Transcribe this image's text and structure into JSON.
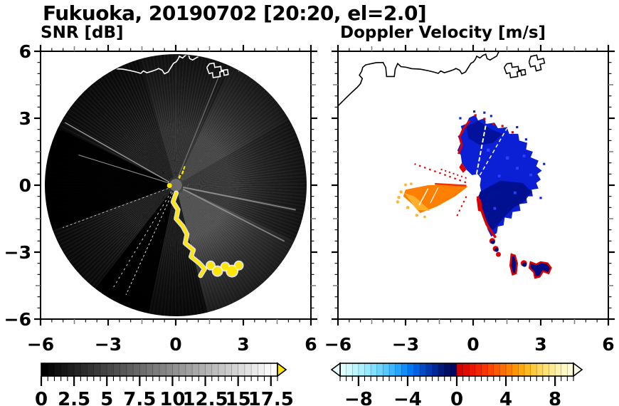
{
  "title": "Fukuoka, 20190702 [20:20, el=2.0]",
  "panels": {
    "snr": {
      "subtitle": "SNR [dB]"
    },
    "velocity": {
      "subtitle": "Doppler Velocity [m/s]"
    }
  },
  "colors": {
    "clutter-yellow": "#ffe600",
    "vel-blue": "#0b1fd4",
    "vel-navy": "#000d85",
    "vel-blue-light": "#2e49ff",
    "vel-red": "#dc0000",
    "vel-red-deep": "#f23000",
    "vel-orange": "#ff7f00",
    "vel-orange-light": "#ffb52e",
    "coast-snr": "#ffffff",
    "coast-vel": "#000000",
    "ray-gray": "#aaaaaa"
  },
  "chart_data": [
    {
      "type": "heatmap",
      "title": "SNR [dB]",
      "xlim": [
        -6,
        6
      ],
      "ylim": [
        -6,
        6
      ],
      "axes": {
        "x_ticks": [
          -6,
          -3,
          0,
          3,
          6
        ],
        "x_tick_labels": [
          "−6",
          "−3",
          "0",
          "3",
          "6"
        ],
        "y_ticks": [
          6,
          3,
          0,
          -3,
          -6
        ],
        "y_tick_labels": [
          "6",
          "3",
          "0",
          "−3",
          "−6"
        ],
        "minor_tick_interval": 0.5
      },
      "colorbar": {
        "range": [
          0,
          18
        ],
        "ticks": [
          0,
          2.5,
          5,
          7.5,
          10,
          12.5,
          15,
          17.5
        ],
        "tick_labels": [
          "0",
          "2.5",
          "5",
          "7.5",
          "10",
          "12.5",
          "15",
          "17.5"
        ],
        "minor": 0.5,
        "colormap": "grayscale",
        "stops": [
          "#000000",
          "#ffffff"
        ],
        "n_segments": 36,
        "over_color": "#ffe600"
      },
      "features": [
        "dark circular PPI scan of radius ~5.8 km centered at (0,0)",
        "faint gray radial beam noise fans toward N, NE, E and SE",
        "black no-signal wedges toward W-WNW and SSW",
        "yellow ground-clutter ridge (SNR > 18 dB) running SSE from center to (1.2,-4.0)",
        "yellow clutter blobs near (1.6,-3.6) to (2.8,-3.7)",
        "white coastline crossing the north of the disk near y = 5"
      ]
    },
    {
      "type": "heatmap",
      "title": "Doppler Velocity [m/s]",
      "xlim": [
        -6,
        6
      ],
      "ylim": [
        -6,
        6
      ],
      "axes": {
        "x_ticks": [
          -6,
          -3,
          0,
          3,
          6
        ],
        "x_tick_labels": [
          "−6",
          "−3",
          "0",
          "3",
          "6"
        ],
        "y_ticks": [
          6,
          3,
          0,
          -3,
          -6
        ],
        "y_tick_labels": [
          "6",
          "3",
          "0",
          "−3",
          "−6"
        ],
        "minor_tick_interval": 0.5
      },
      "colorbar": {
        "range": [
          -9.5,
          9.5
        ],
        "ticks": [
          -8,
          -4,
          0,
          4,
          8
        ],
        "tick_labels": [
          "−8",
          "−4",
          "0",
          "4",
          "8"
        ],
        "minor": 0.5,
        "colormap": "cyan-blue-navy / red-orange-yellow diverging",
        "colors": [
          "#e0ffff",
          "#cffbff",
          "#bdf6ff",
          "#abf0ff",
          "#97e9ff",
          "#82e0ff",
          "#6cd5ff",
          "#55c8ff",
          "#3db8ff",
          "#25a5ff",
          "#0f8fff",
          "#0077f5",
          "#0061e0",
          "#004cc8",
          "#0039af",
          "#002896",
          "#001a7d",
          "#000e64",
          "#000960",
          "#d40000",
          "#e00a00",
          "#eb1600",
          "#f42400",
          "#fa3400",
          "#ff4600",
          "#ff5a00",
          "#ff6e00",
          "#ff8200",
          "#ff9600",
          "#ffa80a",
          "#ffb923",
          "#ffc93e",
          "#ffd75a",
          "#ffe276",
          "#ffeb92",
          "#fff2ac",
          "#fff7c4",
          "#fffbd8"
        ],
        "under_color": "#eaffff",
        "over_color": "#fffde8"
      },
      "features": [
        "white background, black coastline across the north near y = 5",
        "large blue/navy receding region (≈ −2 to −8 m/s) covering N through SE of the radar, from (−0.7,3.0) to (3.0,−2.2)",
        "orange approaching wedge (≈ +3 to +7 m/s) pointing WSW from center out to (−3.1,−1.3), speckled yellow at its far end",
        "thin dotted red rays toward WNW out to (−2.6,1.0)",
        "red velocity-aliasing fringes on the west and south edges of the blue region",
        "mixed red/navy ground-clutter blobs along SE ridge near (0.9,−2.6) and isolated blobs at (1.8,−3.6), (2.3,−3.5), (2.6..3.4,−3.5..−4.1)",
        "small white data hole at the radar position (0,0)"
      ]
    }
  ]
}
